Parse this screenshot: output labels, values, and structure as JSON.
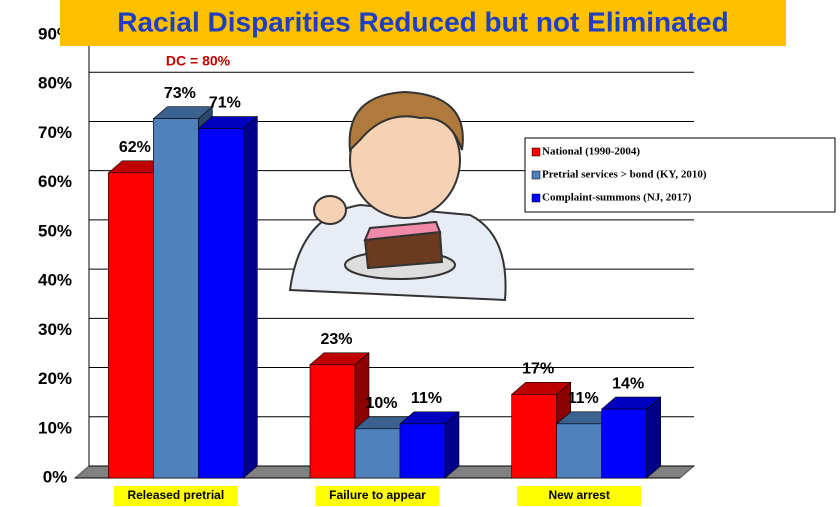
{
  "chart_data": {
    "type": "bar3d",
    "title": "Racial Disparities Reduced but not Eliminated",
    "annotation": "DC = 80%",
    "categories": [
      "Released pretrial",
      "Failure to appear",
      "New arrest"
    ],
    "series": [
      {
        "name": "National (1990-2004)",
        "color": "#ff0000",
        "values": [
          62,
          23,
          17
        ],
        "value_labels": [
          "62%",
          "23%",
          "17%"
        ]
      },
      {
        "name": "Pretrial services > bond (KY, 2010)",
        "color": "#4f81bd",
        "values": [
          73,
          10,
          11
        ],
        "value_labels": [
          "73%",
          "10%",
          "11%"
        ]
      },
      {
        "name": "Complaint-summons (NJ, 2017)",
        "color": "#0000ff",
        "values": [
          71,
          11,
          14
        ],
        "value_labels": [
          "71%",
          "11%",
          "14%"
        ]
      }
    ],
    "ylim": [
      0,
      90
    ],
    "yticks": [
      {
        "value": 0,
        "label": "0%"
      },
      {
        "value": 10,
        "label": "10%"
      },
      {
        "value": 20,
        "label": "20%"
      },
      {
        "value": 30,
        "label": "30%"
      },
      {
        "value": 40,
        "label": "40%"
      },
      {
        "value": 50,
        "label": "50%"
      },
      {
        "value": 60,
        "label": "60%"
      },
      {
        "value": 70,
        "label": "70%"
      },
      {
        "value": 80,
        "label": "80%"
      },
      {
        "value": 90,
        "label": "90%"
      }
    ],
    "grid": true
  }
}
